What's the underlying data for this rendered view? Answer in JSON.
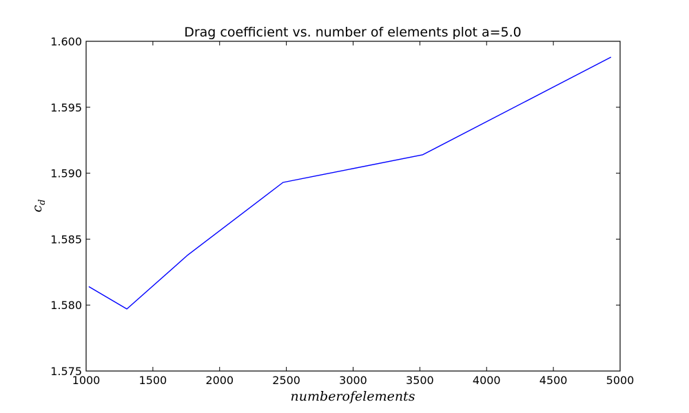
{
  "chart_data": {
    "type": "line",
    "title": "Drag coefficient vs. number of elements plot a=5.0",
    "xlabel": "numberofelements",
    "ylabel_base": "c",
    "ylabel_subscript": "d",
    "xlim": [
      1000,
      5000
    ],
    "ylim": [
      1.575,
      1.6
    ],
    "grid": false,
    "xticks": [
      "1000",
      "1500",
      "2000",
      "2500",
      "3000",
      "3500",
      "4000",
      "4500",
      "5000"
    ],
    "yticks": [
      "1.575",
      "1.580",
      "1.585",
      "1.590",
      "1.595",
      "1.600"
    ],
    "series": [
      {
        "color": "#0000ff",
        "x": [
          1020,
          1305,
          1762,
          2475,
          3522,
          4932
        ],
        "y": [
          1.5814,
          1.5797,
          1.5838,
          1.5893,
          1.5914,
          1.5988
        ]
      }
    ]
  }
}
